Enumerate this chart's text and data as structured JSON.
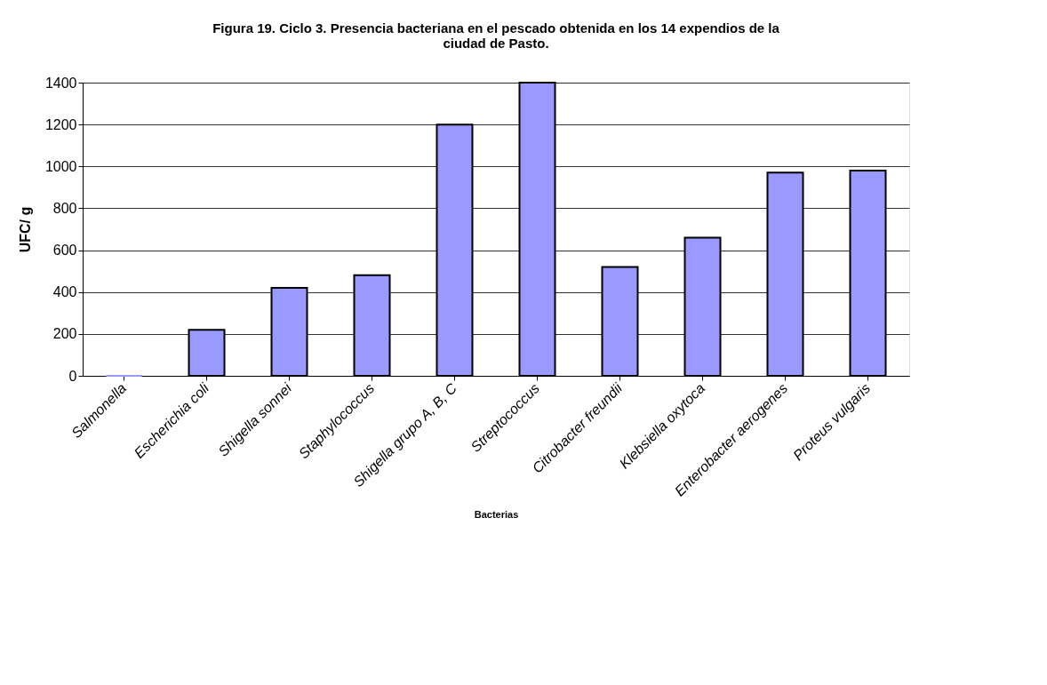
{
  "chart_data": {
    "type": "bar",
    "title": [
      "Figura 19. Ciclo 3.  Presencia bacteriana en el pescado obtenida en los 14 expendios de la",
      "ciudad de Pasto."
    ],
    "xlabel": "Bacterias",
    "ylabel": "UFC/  g",
    "categories": [
      "Salmonella",
      "Escherichia coli",
      "Shigella sonnei",
      "Staphylococcus",
      "Shigella grupo A, B, C",
      "Streptococcus",
      "Citrobacter freundii",
      "Klebsiella oxytoca",
      "Enterobacter aerogenes",
      "Proteus vulgaris"
    ],
    "values": [
      0,
      220,
      420,
      480,
      1200,
      1400,
      520,
      660,
      970,
      980
    ],
    "color": "#9999ff",
    "ylim": [
      0,
      1400
    ],
    "yticks": [
      0,
      200,
      400,
      600,
      800,
      1000,
      1200,
      1400
    ],
    "grid": "y"
  }
}
